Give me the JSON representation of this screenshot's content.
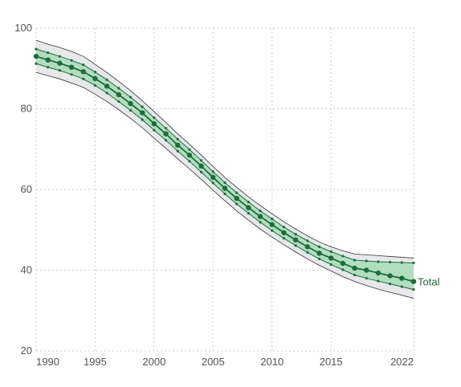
{
  "chart_data": {
    "type": "line",
    "title": "",
    "xlabel": "",
    "ylabel": "",
    "xlim": [
      1990,
      2022
    ],
    "ylim": [
      20,
      100
    ],
    "grid": true,
    "x_ticks": [
      1990,
      1995,
      2000,
      2005,
      2010,
      2015,
      2022
    ],
    "y_ticks": [
      20,
      40,
      60,
      80,
      100
    ],
    "colors": {
      "line": "#1e6b3c",
      "inner_band": "#a8dcb8",
      "outer_band": "#e3e5e8",
      "outer_band_line": "#333333",
      "grid": "#cccccc",
      "text": "#555555"
    },
    "x": [
      1990,
      1991,
      1992,
      1993,
      1994,
      1995,
      1996,
      1997,
      1998,
      1999,
      2000,
      2001,
      2002,
      2003,
      2004,
      2005,
      2006,
      2007,
      2008,
      2009,
      2010,
      2011,
      2012,
      2013,
      2014,
      2015,
      2016,
      2017,
      2018,
      2019,
      2020,
      2021,
      2022
    ],
    "series": [
      {
        "name": "Total",
        "values": [
          93.0,
          92.1,
          91.3,
          90.3,
          89.2,
          87.5,
          85.6,
          83.5,
          81.3,
          79.0,
          76.3,
          73.8,
          71.0,
          68.5,
          65.8,
          63.0,
          60.3,
          57.8,
          55.5,
          53.3,
          51.3,
          49.3,
          47.5,
          45.8,
          44.2,
          43.0,
          41.7,
          40.5,
          40.0,
          39.3,
          38.6,
          38.0,
          37.2
        ],
        "inner_upper": [
          94.8,
          93.9,
          93.0,
          92.0,
          90.9,
          89.1,
          87.2,
          85.1,
          82.9,
          80.5,
          77.8,
          75.2,
          72.5,
          69.9,
          67.2,
          64.4,
          61.7,
          59.2,
          56.9,
          54.7,
          52.7,
          50.7,
          48.9,
          47.3,
          45.8,
          44.6,
          43.5,
          42.5,
          42.3,
          42.1,
          42.0,
          41.9,
          41.8
        ],
        "inner_lower": [
          91.2,
          90.3,
          89.5,
          88.5,
          87.4,
          85.8,
          83.9,
          81.8,
          79.6,
          77.3,
          74.7,
          72.2,
          69.5,
          67.0,
          64.3,
          61.6,
          58.9,
          56.4,
          54.1,
          51.9,
          49.8,
          47.9,
          46.1,
          44.4,
          42.8,
          41.4,
          40.1,
          38.8,
          38.0,
          37.3,
          36.6,
          35.9,
          35.2
        ],
        "outer_upper": [
          97.0,
          96.0,
          95.2,
          94.2,
          93.0,
          91.0,
          89.0,
          86.8,
          84.5,
          82.0,
          79.3,
          76.6,
          73.8,
          71.2,
          68.5,
          65.7,
          63.0,
          60.5,
          58.2,
          56.0,
          54.0,
          52.0,
          50.2,
          48.5,
          47.0,
          45.8,
          44.8,
          44.0,
          43.8,
          43.6,
          43.4,
          43.2,
          43.0
        ],
        "outer_lower": [
          89.0,
          88.2,
          87.4,
          86.4,
          85.3,
          83.6,
          81.8,
          79.8,
          77.6,
          75.3,
          72.7,
          70.2,
          67.6,
          65.1,
          62.5,
          59.8,
          57.2,
          54.7,
          52.4,
          50.2,
          48.2,
          46.3,
          44.5,
          42.8,
          41.2,
          39.8,
          38.4,
          37.2,
          36.2,
          35.3,
          34.5,
          33.8,
          33.0
        ]
      }
    ]
  }
}
